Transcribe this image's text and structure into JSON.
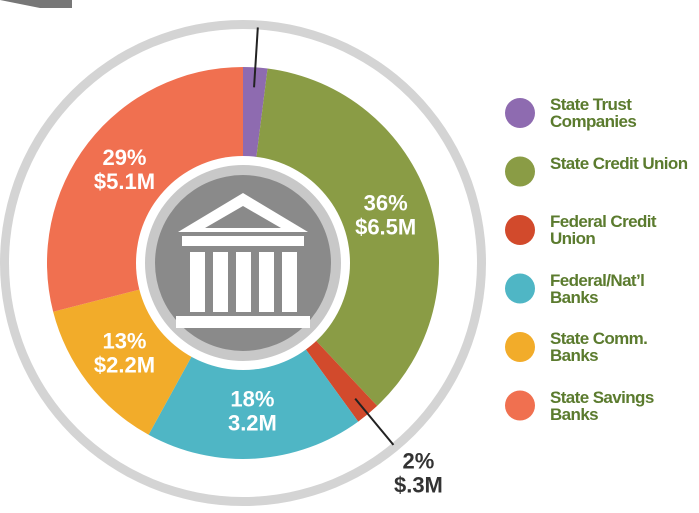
{
  "chart_data": {
    "type": "donut",
    "categories": [
      "State Trust Companies",
      "State Credit Union",
      "Federal Credit Union",
      "Federal/Nat’l Banks",
      "State Comm. Banks",
      "State Savings Banks"
    ],
    "values": [
      2,
      36,
      2,
      18,
      13,
      29
    ],
    "value_labels": [
      "2%",
      "36%",
      "2%",
      "18%",
      "13%",
      "29%"
    ],
    "amount_labels": [
      "$.3M",
      "$6.5M",
      "$.3M",
      "3.2M",
      "$2.2M",
      "$5.1M"
    ],
    "colors": [
      "#8e6bb0",
      "#8a9c45",
      "#d24a2c",
      "#4fb6c5",
      "#f2ac2a",
      "#f07050"
    ]
  }
}
